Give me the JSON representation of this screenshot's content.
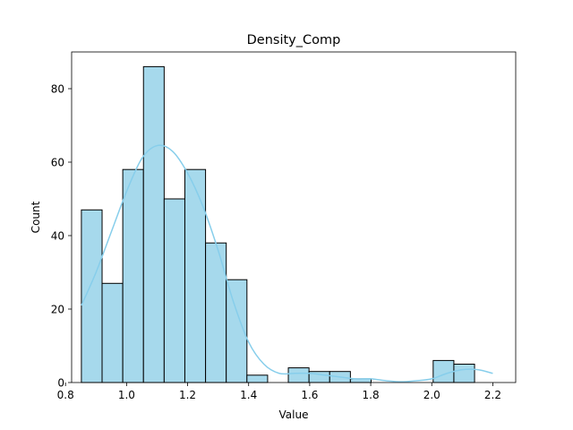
{
  "chart_data": {
    "type": "bar",
    "title": "Density_Comp",
    "xlabel": "Value",
    "ylabel": "Count",
    "xlim": [
      0.82,
      2.275
    ],
    "ylim": [
      0,
      90
    ],
    "xticks": [
      0.8,
      1.0,
      1.2,
      1.4,
      1.6,
      1.8,
      2.0,
      2.2
    ],
    "xtick_labels": [
      "0.8",
      "1.0",
      "1.2",
      "1.4",
      "1.6",
      "1.8",
      "2.0",
      "2.2"
    ],
    "yticks": [
      0,
      20,
      40,
      60,
      80
    ],
    "ytick_labels": [
      "0",
      "20",
      "40",
      "60",
      "80"
    ],
    "grid": false,
    "bin_start": 0.852,
    "bin_width": 0.0678,
    "counts": [
      47,
      27,
      58,
      86,
      50,
      58,
      38,
      28,
      2,
      0,
      4,
      3,
      3,
      1,
      0,
      0,
      0,
      6,
      5
    ],
    "kde": {
      "x": [
        0.852,
        0.9,
        0.95,
        1.0,
        1.05,
        1.1,
        1.15,
        1.2,
        1.25,
        1.3,
        1.35,
        1.4,
        1.45,
        1.5,
        1.55,
        1.6,
        1.65,
        1.7,
        1.75,
        1.8,
        1.85,
        1.9,
        1.95,
        2.0,
        2.05,
        2.1,
        2.15,
        2.2
      ],
      "y": [
        21,
        30,
        41,
        52,
        61,
        64.5,
        63,
        57,
        48,
        36,
        22,
        11,
        5,
        2.5,
        2.5,
        2.5,
        2,
        1.5,
        1,
        1,
        0.5,
        0.2,
        0.5,
        1,
        2.5,
        3.5,
        3.5,
        2.5
      ]
    },
    "bar_color": "#a6d9ec",
    "edge_color": "#000000",
    "kde_color": "#87ceeb"
  }
}
